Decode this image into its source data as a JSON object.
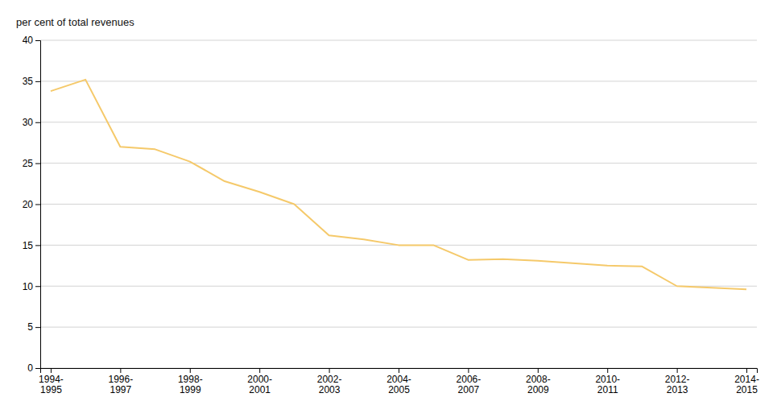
{
  "chart_data": {
    "type": "line",
    "ylabel": "per cent of total revenues",
    "categories": [
      "1994-\n1995",
      null,
      "1996-\n1997",
      null,
      "1998-\n1999",
      null,
      "2000-\n2001",
      null,
      "2002-\n2003",
      null,
      "2004-\n2005",
      null,
      "2006-\n2007",
      null,
      "2008-\n2009",
      null,
      "2010-\n2011",
      null,
      "2012-\n2013",
      null,
      "2014-\n2015"
    ],
    "values": [
      33.8,
      35.2,
      27.0,
      26.7,
      25.2,
      22.8,
      21.5,
      20.0,
      16.2,
      15.7,
      15.0,
      15.0,
      13.2,
      13.3,
      13.1,
      12.8,
      12.5,
      12.4,
      10.0,
      9.8,
      9.6
    ],
    "color": "#F5C96A",
    "ylim": [
      0,
      40
    ],
    "yticks": [
      0,
      5,
      10,
      15,
      20,
      25,
      30,
      35,
      40
    ],
    "grid": true
  }
}
